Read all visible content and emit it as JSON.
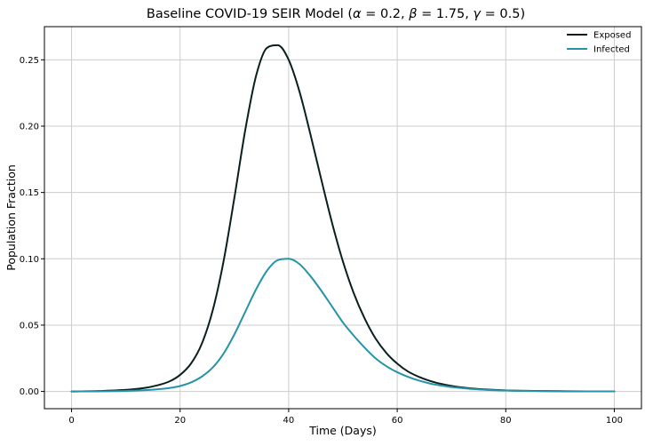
{
  "chart_data": {
    "type": "line",
    "title": "Baseline COVID-19 SEIR Model (",
    "title_params": [
      {
        "symbol": "α",
        "value": "0.2"
      },
      {
        "symbol": "β",
        "value": "1.75"
      },
      {
        "symbol": "γ",
        "value": "0.5"
      }
    ],
    "xlabel": "Time (Days)",
    "ylabel": "Population Fraction",
    "xlim": [
      -5,
      105
    ],
    "ylim": [
      -0.013,
      0.275
    ],
    "xticks": [
      0,
      20,
      40,
      60,
      80,
      100
    ],
    "yticks": [
      0.0,
      0.05,
      0.1,
      0.15,
      0.2,
      0.25
    ],
    "xtick_labels": [
      "0",
      "20",
      "40",
      "60",
      "80",
      "100"
    ],
    "ytick_labels": [
      "0.00",
      "0.05",
      "0.10",
      "0.15",
      "0.20",
      "0.25"
    ],
    "grid": true,
    "legend_position": "top-right",
    "x": [
      0,
      5,
      10,
      14,
      18,
      20,
      22,
      24,
      26,
      28,
      30,
      32,
      34,
      36,
      38,
      40,
      42,
      44,
      46,
      48,
      50,
      52,
      54,
      56,
      58,
      60,
      62,
      64,
      66,
      68,
      70,
      72,
      75,
      80,
      85,
      90,
      95,
      100
    ],
    "series": [
      {
        "name": "Exposed",
        "color": "#0b1f1f",
        "values": [
          0.0,
          0.0003,
          0.0012,
          0.003,
          0.0075,
          0.0125,
          0.021,
          0.036,
          0.061,
          0.098,
          0.146,
          0.197,
          0.238,
          0.259,
          0.261,
          0.25,
          0.226,
          0.194,
          0.16,
          0.127,
          0.098,
          0.074,
          0.055,
          0.04,
          0.029,
          0.021,
          0.015,
          0.011,
          0.008,
          0.0058,
          0.0042,
          0.003,
          0.0018,
          0.0008,
          0.0004,
          0.0002,
          0.0001,
          5e-05
        ]
      },
      {
        "name": "Infected",
        "color": "#2594a8",
        "values": [
          0.0,
          0.0001,
          0.0004,
          0.0011,
          0.0026,
          0.0041,
          0.0068,
          0.0112,
          0.018,
          0.0285,
          0.043,
          0.06,
          0.077,
          0.091,
          0.099,
          0.1,
          0.096,
          0.087,
          0.076,
          0.064,
          0.052,
          0.042,
          0.033,
          0.025,
          0.019,
          0.0145,
          0.011,
          0.0082,
          0.006,
          0.0045,
          0.0033,
          0.0025,
          0.0015,
          0.0007,
          0.0003,
          0.00015,
          7e-05,
          3e-05
        ]
      }
    ]
  }
}
